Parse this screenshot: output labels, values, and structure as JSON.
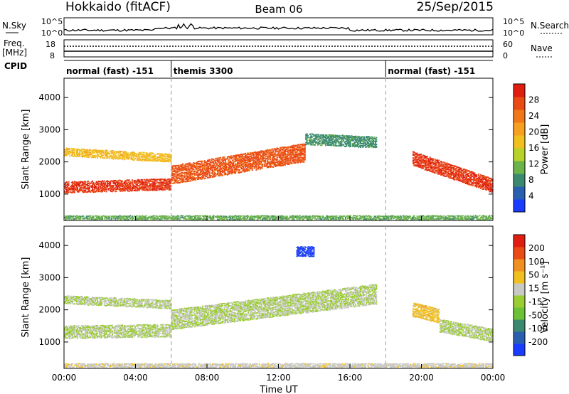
{
  "header": {
    "station": "Hokkaido (fitACF)",
    "beam": "Beam 06",
    "date": "25/Sep/2015"
  },
  "nsky_panel": {
    "label": "N.Sky",
    "left_ticks": [
      "10^5",
      "10^0"
    ],
    "right_ticks": [
      "10^5",
      "10^0"
    ],
    "legend_label": "N.Search"
  },
  "freq_panel": {
    "label": "Freq.",
    "unit": "[MHz]",
    "left_ticks": [
      "18",
      "8"
    ],
    "right_ticks": [
      "60",
      "0"
    ],
    "legend_label": "Nave"
  },
  "cpid_panel": {
    "label": "CPID",
    "segments": [
      {
        "label": "normal (fast) -151",
        "start_hour": 0,
        "end_hour": 6
      },
      {
        "label": "themis 3300",
        "start_hour": 6,
        "end_hour": 18
      },
      {
        "label": "normal (fast) -151",
        "start_hour": 18,
        "end_hour": 24
      }
    ]
  },
  "axes": {
    "xlabel": "Time UT",
    "x_ticks": [
      "00:00",
      "04:00",
      "08:00",
      "12:00",
      "16:00",
      "20:00",
      "00:00"
    ],
    "ylabel": "Slant Range [km]",
    "y_ticks": [
      "1000",
      "2000",
      "3000",
      "4000"
    ]
  },
  "power_colorbar": {
    "label": "Power [dB]",
    "ticks": [
      "4",
      "8",
      "12",
      "16",
      "20",
      "24",
      "28"
    ],
    "colors": [
      "#1a3cff",
      "#2a5fb0",
      "#3b8a70",
      "#6cb34a",
      "#b8d22a",
      "#f0c020",
      "#f7a020",
      "#f07818",
      "#ea4a14",
      "#e01e10"
    ]
  },
  "velocity_colorbar": {
    "label": "Velocity [m s⁻¹]",
    "ticks": [
      "200",
      "100",
      "50",
      "15",
      "-15",
      "-50",
      "-100",
      "-200"
    ],
    "colors": [
      "#1a3cff",
      "#2a5fb0",
      "#3b8a70",
      "#6cc236",
      "#9acd32",
      "#c8c8c4",
      "#f0c020",
      "#f09020",
      "#ea4a14",
      "#e01e10"
    ]
  },
  "chart_data": {
    "type": "heatmap",
    "title": "Hokkaido (fitACF)  Beam 06  25/Sep/2015",
    "xlabel": "Time UT",
    "ylabel": "Slant Range [km]",
    "x_range_hours": [
      0,
      24
    ],
    "ylim": [
      180,
      4600
    ],
    "grid": false,
    "mode_change_lines_hours": [
      6,
      18
    ],
    "panels": [
      {
        "name": "Power [dB]",
        "color_range": [
          0,
          30
        ],
        "bands": [
          {
            "t0": 0.0,
            "t1": 6.0,
            "r_center_start": 1200,
            "r_center_end": 1300,
            "width": 350,
            "value": 27
          },
          {
            "t0": 0.0,
            "t1": 6.0,
            "r_center_start": 2300,
            "r_center_end": 2100,
            "width": 250,
            "value": 17
          },
          {
            "t0": 6.0,
            "t1": 13.5,
            "r_center_start": 1600,
            "r_center_end": 2300,
            "width": 600,
            "value": 25
          },
          {
            "t0": 13.5,
            "t1": 17.5,
            "r_center_start": 2700,
            "r_center_end": 2600,
            "width": 350,
            "value": 8
          },
          {
            "t0": 19.5,
            "t1": 24.0,
            "r_center_start": 2100,
            "r_center_end": 1250,
            "width": 450,
            "value": 27
          },
          {
            "t0": 0.0,
            "t1": 24.0,
            "r_center_start": 260,
            "r_center_end": 260,
            "width": 120,
            "value": 10
          }
        ]
      },
      {
        "name": "Velocity [m s-1]",
        "color_range": [
          -200,
          200
        ],
        "bands": [
          {
            "t0": 0.0,
            "t1": 6.0,
            "r_center_start": 1300,
            "r_center_end": 1350,
            "width": 400,
            "value": 0
          },
          {
            "t0": 0.0,
            "t1": 6.0,
            "r_center_start": 2300,
            "r_center_end": 2150,
            "width": 250,
            "value": 0
          },
          {
            "t0": 6.0,
            "t1": 17.5,
            "r_center_start": 1700,
            "r_center_end": 2500,
            "width": 650,
            "value": 0
          },
          {
            "t0": 19.5,
            "t1": 21.0,
            "r_center_start": 2000,
            "r_center_end": 1800,
            "width": 450,
            "value": 60
          },
          {
            "t0": 21.0,
            "t1": 24.0,
            "r_center_start": 1500,
            "r_center_end": 1200,
            "width": 400,
            "value": 0
          },
          {
            "t0": 13.0,
            "t1": 14.0,
            "r_center_start": 3800,
            "r_center_end": 3800,
            "width": 300,
            "value": -180
          },
          {
            "t0": 0.0,
            "t1": 24.0,
            "r_center_start": 260,
            "r_center_end": 260,
            "width": 120,
            "value": 25
          }
        ]
      }
    ]
  }
}
